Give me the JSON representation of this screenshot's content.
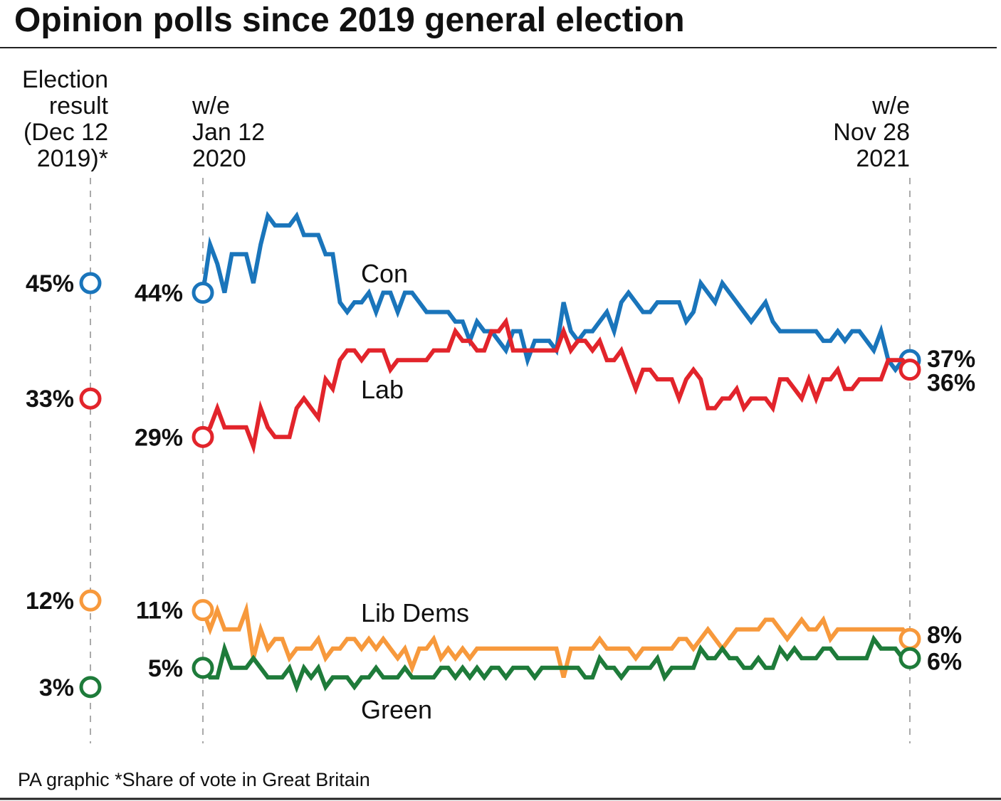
{
  "title": "Opinion polls since 2019 general election",
  "footer": "PA graphic *Share of vote in Great Britain",
  "chart_data": {
    "type": "line",
    "grid": false,
    "ylim": [
      0,
      55
    ],
    "election_header": [
      "Election",
      "result",
      "(Dec 12",
      "2019)*"
    ],
    "start_header": [
      "w/e",
      "Jan 12",
      "2020"
    ],
    "end_header": [
      "w/e",
      "Nov 28",
      "2021"
    ],
    "x_start": "w/e Jan 12 2020",
    "x_end": "w/e Nov 28 2021",
    "x_interval": "weekly",
    "series": [
      {
        "name": "Con",
        "color": "#1a75bb",
        "election_result": 45,
        "election_label": "45%",
        "start_label": "44%",
        "end_label": "37%",
        "values": [
          44,
          49,
          47,
          44,
          48,
          48,
          48,
          45,
          49,
          52,
          51,
          51,
          51,
          52,
          50,
          50,
          50,
          48,
          48,
          43,
          42,
          43,
          43,
          44,
          42,
          44,
          44,
          42,
          44,
          44,
          43,
          42,
          42,
          42,
          42,
          41,
          41,
          39,
          41,
          40,
          40,
          39,
          38,
          40,
          40,
          37,
          39,
          39,
          39,
          38,
          43,
          40,
          39,
          40,
          40,
          41,
          42,
          40,
          43,
          44,
          43,
          42,
          42,
          43,
          43,
          43,
          43,
          41,
          42,
          45,
          44,
          43,
          45,
          44,
          43,
          42,
          41,
          42,
          43,
          41,
          40,
          40,
          40,
          40,
          40,
          40,
          39,
          39,
          40,
          39,
          40,
          40,
          39,
          38,
          40,
          37,
          36,
          37,
          37
        ]
      },
      {
        "name": "Lab",
        "color": "#e2242b",
        "election_result": 33,
        "election_label": "33%",
        "start_label": "29%",
        "end_label": "36%",
        "values": [
          29,
          30,
          32,
          30,
          30,
          30,
          30,
          28,
          32,
          30,
          29,
          29,
          29,
          32,
          33,
          32,
          31,
          35,
          34,
          37,
          38,
          38,
          37,
          38,
          38,
          38,
          36,
          37,
          37,
          37,
          37,
          37,
          38,
          38,
          38,
          40,
          39,
          39,
          38,
          38,
          40,
          40,
          41,
          38,
          38,
          38,
          38,
          38,
          38,
          38,
          40,
          38,
          39,
          39,
          38,
          39,
          37,
          37,
          38,
          36,
          34,
          36,
          36,
          35,
          35,
          35,
          33,
          35,
          36,
          35,
          32,
          32,
          33,
          33,
          34,
          32,
          33,
          33,
          33,
          32,
          35,
          35,
          34,
          33,
          35,
          33,
          35,
          35,
          36,
          34,
          34,
          35,
          35,
          35,
          35,
          37,
          37,
          37,
          36
        ]
      },
      {
        "name": "Lib Dems",
        "color": "#f7993c",
        "election_result": 12,
        "election_label": "12%",
        "start_label": "11%",
        "end_label": "8%",
        "values": [
          11,
          9,
          11,
          9,
          9,
          9,
          11,
          6,
          9,
          7,
          8,
          8,
          6,
          7,
          7,
          7,
          8,
          6,
          7,
          7,
          8,
          8,
          7,
          8,
          7,
          8,
          7,
          6,
          7,
          5,
          7,
          7,
          8,
          6,
          7,
          6,
          7,
          6,
          7,
          7,
          7,
          7,
          7,
          7,
          7,
          7,
          7,
          7,
          7,
          7,
          4,
          7,
          7,
          7,
          7,
          8,
          7,
          7,
          7,
          7,
          6,
          7,
          7,
          7,
          7,
          7,
          8,
          8,
          7,
          8,
          9,
          8,
          7,
          8,
          9,
          9,
          9,
          9,
          10,
          10,
          9,
          8,
          9,
          10,
          9,
          9,
          10,
          8,
          9,
          9,
          9,
          9,
          9,
          9,
          9,
          9,
          9,
          9,
          8
        ]
      },
      {
        "name": "Green",
        "color": "#1e7b3a",
        "election_result": 3,
        "election_label": "3%",
        "start_label": "5%",
        "end_label": "6%",
        "values": [
          5,
          4,
          4,
          7,
          5,
          5,
          5,
          6,
          5,
          4,
          4,
          4,
          5,
          3,
          5,
          4,
          5,
          3,
          4,
          4,
          4,
          3,
          4,
          4,
          5,
          4,
          4,
          4,
          5,
          4,
          4,
          4,
          4,
          5,
          5,
          4,
          5,
          4,
          5,
          4,
          5,
          5,
          4,
          5,
          5,
          5,
          4,
          5,
          5,
          5,
          5,
          5,
          5,
          4,
          4,
          6,
          5,
          5,
          4,
          5,
          5,
          5,
          5,
          6,
          4,
          5,
          5,
          5,
          5,
          7,
          6,
          6,
          7,
          6,
          6,
          5,
          5,
          6,
          5,
          5,
          7,
          6,
          7,
          6,
          6,
          6,
          7,
          7,
          6,
          6,
          6,
          6,
          6,
          8,
          7,
          7,
          7,
          6,
          6
        ]
      }
    ]
  }
}
